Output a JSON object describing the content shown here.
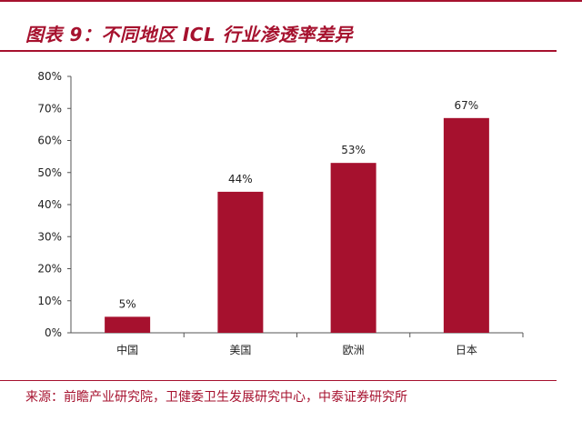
{
  "header": {
    "title": "图表 9：不同地区 ICL 行业渗透率差异"
  },
  "footer": {
    "source": "来源：前瞻产业研究院，卫健委卫生发展研究中心，中泰证券研究所"
  },
  "colors": {
    "accent": "#a6112e",
    "bar": "#a6112e"
  },
  "chart_data": {
    "type": "bar",
    "title": "",
    "xlabel": "",
    "ylabel": "",
    "categories": [
      "中国",
      "美国",
      "欧洲",
      "日本"
    ],
    "values": [
      5,
      44,
      53,
      67
    ],
    "data_labels": [
      "5%",
      "44%",
      "53%",
      "67%"
    ],
    "ylim": [
      0,
      80
    ],
    "yticks": [
      0,
      10,
      20,
      30,
      40,
      50,
      60,
      70,
      80
    ],
    "ytick_labels": [
      "0%",
      "10%",
      "20%",
      "30%",
      "40%",
      "50%",
      "60%",
      "70%",
      "80%"
    ],
    "grid": false,
    "legend": "none"
  }
}
